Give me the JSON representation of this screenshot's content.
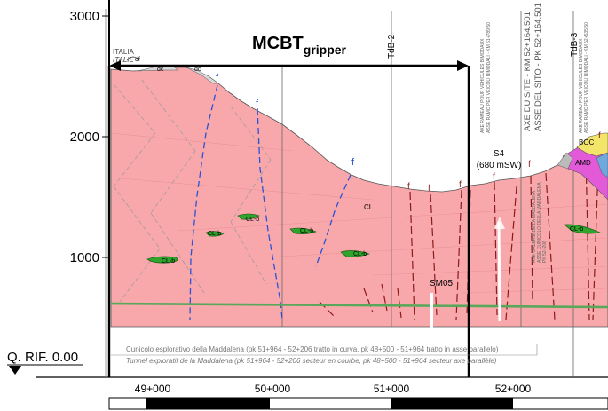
{
  "elevation_axis": {
    "ticks": [
      "3000",
      "2000",
      "1000"
    ],
    "reference": "Q. RIF. 0.00"
  },
  "chainage_axis": {
    "ticks": [
      "49+000",
      "50+000",
      "51+000",
      "52+000"
    ]
  },
  "title": {
    "main": "MCBT",
    "sub": "gripper"
  },
  "borders": {
    "italia": "ITALIA",
    "italie": "ITALIE"
  },
  "boreholes": {
    "tdb2": "TdB-2",
    "tdb3": "TdB-3",
    "sm05": "SM05"
  },
  "site_axis": {
    "fr": "AXE DU SITE - KM 52+164.501",
    "it": "ASSE DEL SITO - PK 52+164.501"
  },
  "axe_rameau": {
    "fr": "AXE RAMEAU POUR VEHICULES BIMODAUX",
    "it": "ASSE RAMO PER VEICOLI BIMODALI - KM 51+789.50"
  },
  "axe_rameau2": {
    "fr": "AXE RAMEAU POUR VEHICULES BIMODAUX",
    "it": "ASSE RAMO PER VEICOLI BIMODALI - KM 52+535.50"
  },
  "galerie": {
    "fr": "AXE GALERIE DE LA MADDALENA",
    "it": "ASSE CUNICOLO DELLA MADDALENA",
    "pk": "PK 52+206"
  },
  "station": {
    "name": "S4",
    "depth": "(680 mSW)"
  },
  "geology": {
    "dc": "dc",
    "df": "df",
    "cl": "CL",
    "clb": "CL-b",
    "boc": "BOC",
    "amd": "AMD",
    "fault": "f"
  },
  "tunnel_note": {
    "it": "Cunicolo esplorativo della Maddalena (pk 51+964 - 52+206 tratto in curva, pk 48+500 - 51+964 tratto in asse parallelo)",
    "fr": "Tunnel exploratif de la Maddalena (pk 51+964 - 52+206 secteur en courbe, pk 48+500 - 51+964 secteur axe parallèle)"
  },
  "colors": {
    "rock": "#f8a8ab",
    "rock_dark": "#f4959a",
    "fault_blue": "#2a52d6",
    "fault_red": "#8b1a1a",
    "tunnel_green": "#59a75b",
    "lens_green": "#2fa52b",
    "amd_magenta": "#e25ad8",
    "boc_yellow": "#f3e46a"
  }
}
